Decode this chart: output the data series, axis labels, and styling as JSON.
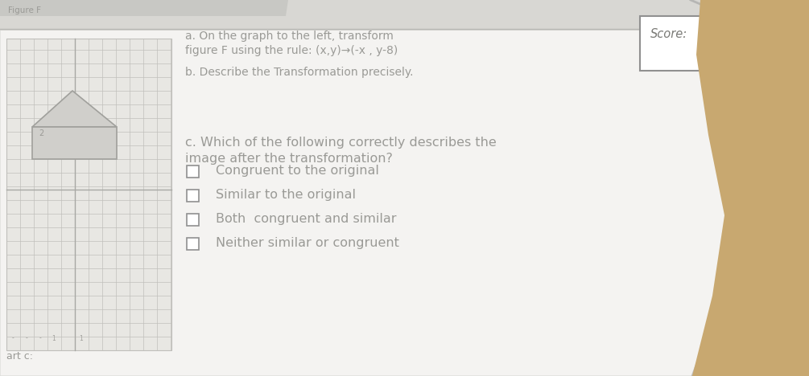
{
  "bg_wood_color": "#c8a870",
  "paper_color": "#f0efec",
  "paper_color2": "#e8e8e5",
  "text_color": "#9a9a96",
  "text_color_dark": "#7a7a76",
  "score_label": "Score:",
  "part_a_line1": "a. On the graph to the left, transform",
  "part_a_line2": "figure F using the rule: (x,y)→(-x , y-8)",
  "part_b": "b. Describe the Transformation precisely.",
  "part_c_line1": "c. Which of the following correctly describes the",
  "part_c_line2": "image after the transformation?",
  "options": [
    "Congruent to the original",
    "Similar to the original",
    "Both  congruent and similar",
    "Neither similar or congruent"
  ],
  "figure_label": "Figure F",
  "bottom_label": "art c:",
  "grid_color": "#c0bfbb",
  "grid_bg": "#e8e7e3",
  "figure_color": "#c0bfbb",
  "header_color": "#d8d7d3",
  "score_box_color": "#ffffff"
}
